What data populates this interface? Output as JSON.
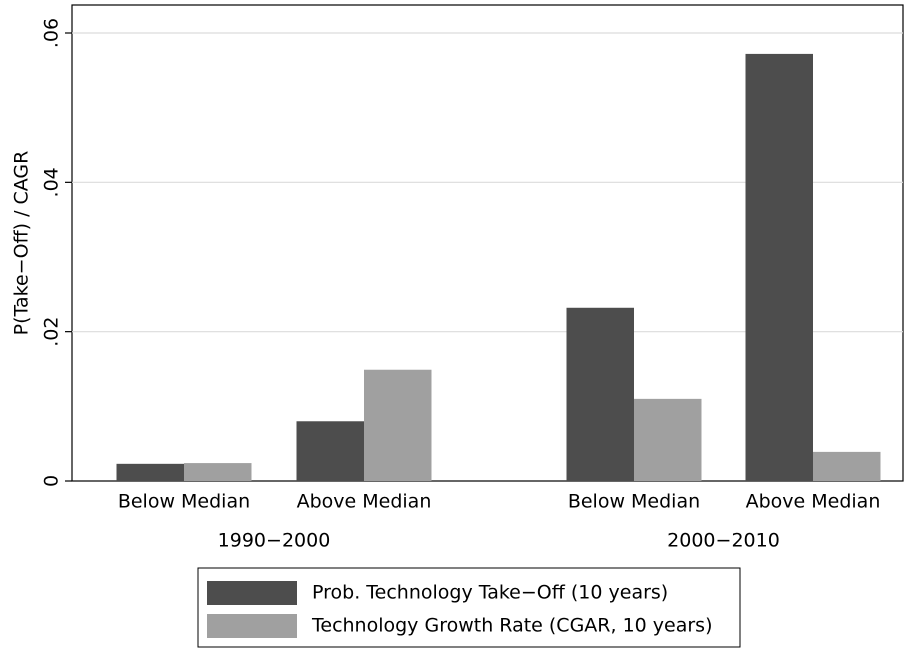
{
  "chart_data": {
    "type": "bar",
    "ylabel": "P(Take−Off) / CAGR",
    "groups": [
      "1990−2000",
      "2000−2010"
    ],
    "categories": [
      "Below Median",
      "Above Median",
      "Below Median",
      "Above Median"
    ],
    "series": [
      {
        "name": "Prob. Technology Take−Off (10 years)",
        "color": "#4d4d4d",
        "values": [
          0.0023,
          0.008,
          0.0232,
          0.0572
        ]
      },
      {
        "name": "Technology Growth Rate (CGAR, 10 years)",
        "color": "#a0a0a0",
        "values": [
          0.0024,
          0.0149,
          0.011,
          0.0039
        ]
      }
    ],
    "ylim": [
      0,
      0.06
    ],
    "yticks": [
      0,
      {
        "value": 0.02,
        "label": ".02"
      },
      {
        "value": 0.04,
        "label": ".04"
      },
      {
        "value": 0.06,
        "label": ".06"
      }
    ],
    "grid": true
  }
}
